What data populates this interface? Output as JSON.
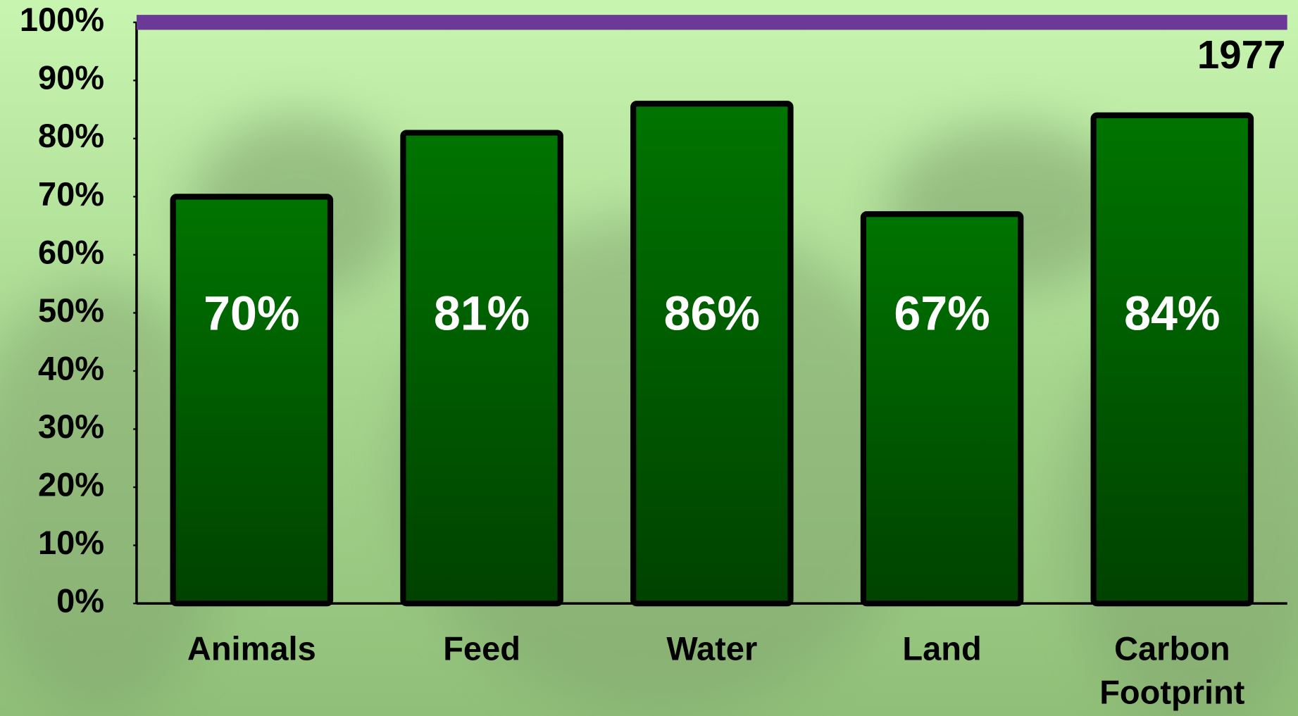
{
  "chart_data": {
    "type": "bar",
    "categories": [
      "Animals",
      "Feed",
      "Water",
      "Land",
      "Carbon Footprint"
    ],
    "values": [
      70,
      81,
      86,
      67,
      84
    ],
    "value_labels": [
      "70%",
      "81%",
      "86%",
      "67%",
      "84%"
    ],
    "color": "#006400",
    "ylim": [
      0,
      100
    ],
    "yticks": [
      {
        "value": 0,
        "label": "0%"
      },
      {
        "value": 10,
        "label": "10%"
      },
      {
        "value": 20,
        "label": "20%"
      },
      {
        "value": 30,
        "label": "30%"
      },
      {
        "value": 40,
        "label": "40%"
      },
      {
        "value": 50,
        "label": "50%"
      },
      {
        "value": 60,
        "label": "60%"
      },
      {
        "value": 70,
        "label": "70%"
      },
      {
        "value": 80,
        "label": "80%"
      },
      {
        "value": 90,
        "label": "90%"
      },
      {
        "value": 100,
        "label": "100%"
      }
    ],
    "reference_line": {
      "value": 100,
      "label": "1977",
      "color": "#6b3a96"
    }
  }
}
